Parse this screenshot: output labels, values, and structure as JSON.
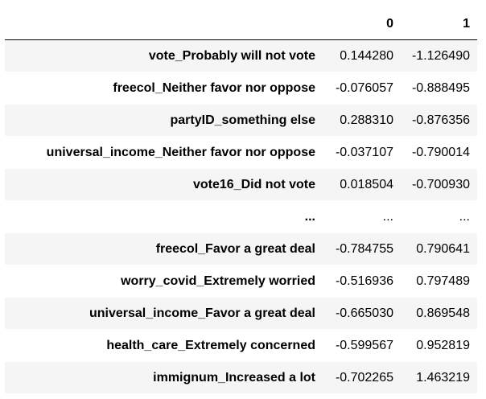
{
  "table": {
    "columns": [
      "0",
      "1"
    ],
    "rows": [
      {
        "index": "vote_Probably will not vote",
        "c0": "0.144280",
        "c1": "-1.126490"
      },
      {
        "index": "freecol_Neither favor nor oppose",
        "c0": "-0.076057",
        "c1": "-0.888495"
      },
      {
        "index": "partyID_something else",
        "c0": "0.288310",
        "c1": "-0.876356"
      },
      {
        "index": "universal_income_Neither favor nor oppose",
        "c0": "-0.037107",
        "c1": "-0.790014"
      },
      {
        "index": "vote16_Did not vote",
        "c0": "0.018504",
        "c1": "-0.700930"
      },
      {
        "index": "...",
        "c0": "...",
        "c1": "..."
      },
      {
        "index": "freecol_Favor a great deal",
        "c0": "-0.784755",
        "c1": "0.790641"
      },
      {
        "index": "worry_covid_Extremely worried",
        "c0": "-0.516936",
        "c1": "0.797489"
      },
      {
        "index": "universal_income_Favor a great deal",
        "c0": "-0.665030",
        "c1": "0.869548"
      },
      {
        "index": "health_care_Extremely concerned",
        "c0": "-0.599567",
        "c1": "0.952819"
      },
      {
        "index": "immignum_Increased a lot",
        "c0": "-0.702265",
        "c1": "1.463219"
      }
    ]
  }
}
